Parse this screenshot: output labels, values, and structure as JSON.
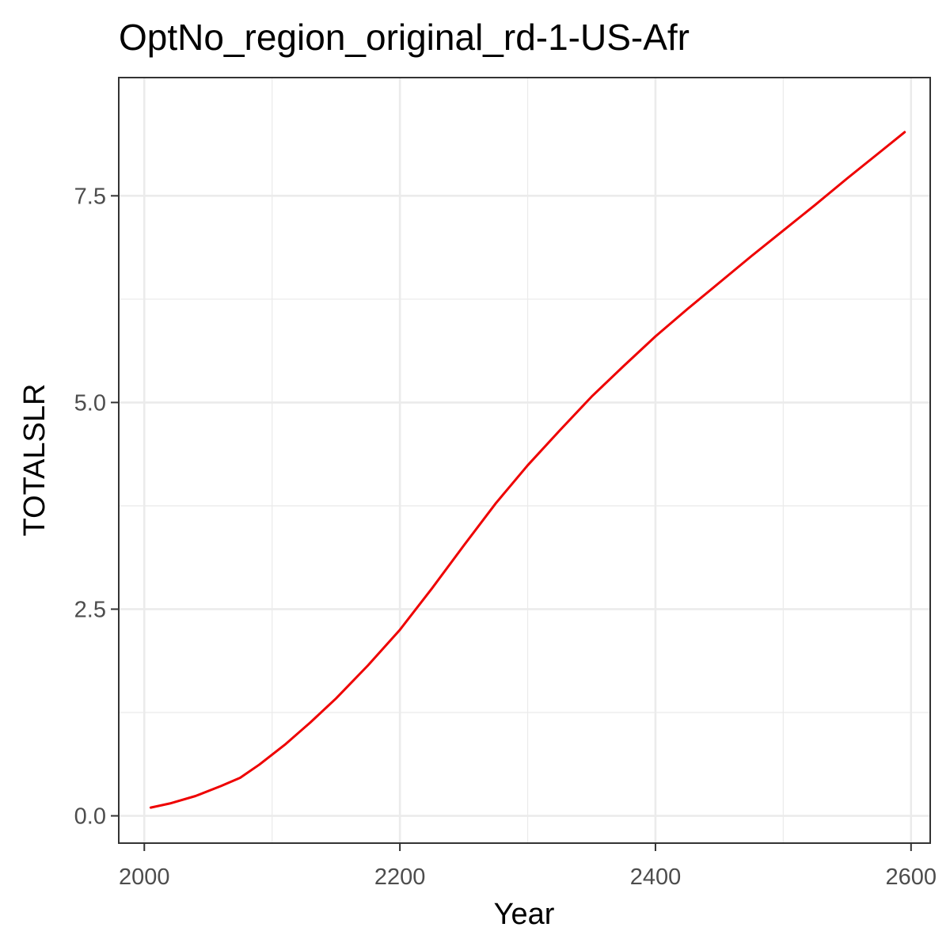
{
  "chart_data": {
    "type": "line",
    "title": "OptNo_region_original_rd-1-US-Afr",
    "xlabel": "Year",
    "ylabel": "TOTALSLR",
    "xlim": [
      1980,
      2615
    ],
    "ylim": [
      -0.33,
      8.93
    ],
    "x_ticks": [
      2000,
      2200,
      2400,
      2600
    ],
    "x_tick_labels": [
      "2000",
      "2200",
      "2400",
      "2600"
    ],
    "y_ticks": [
      0,
      2.5,
      5,
      7.5
    ],
    "y_tick_labels": [
      "0.0",
      "2.5",
      "5.0",
      "7.5"
    ],
    "x_minor": [
      2100,
      2300,
      2500
    ],
    "y_minor": [
      1.25,
      3.75,
      6.25
    ],
    "grid": true,
    "legend": "none",
    "series": [
      {
        "color": "#ee0000",
        "x": [
          2005,
          2020,
          2040,
          2060,
          2075,
          2090,
          2110,
          2130,
          2150,
          2175,
          2200,
          2225,
          2250,
          2275,
          2300,
          2325,
          2350,
          2375,
          2400,
          2425,
          2450,
          2475,
          2500,
          2525,
          2550,
          2575,
          2595
        ],
        "y": [
          0.1,
          0.15,
          0.24,
          0.36,
          0.46,
          0.62,
          0.86,
          1.13,
          1.42,
          1.82,
          2.25,
          2.75,
          3.27,
          3.78,
          4.24,
          4.66,
          5.07,
          5.44,
          5.8,
          6.13,
          6.45,
          6.77,
          7.08,
          7.39,
          7.71,
          8.02,
          8.27
        ]
      }
    ]
  }
}
